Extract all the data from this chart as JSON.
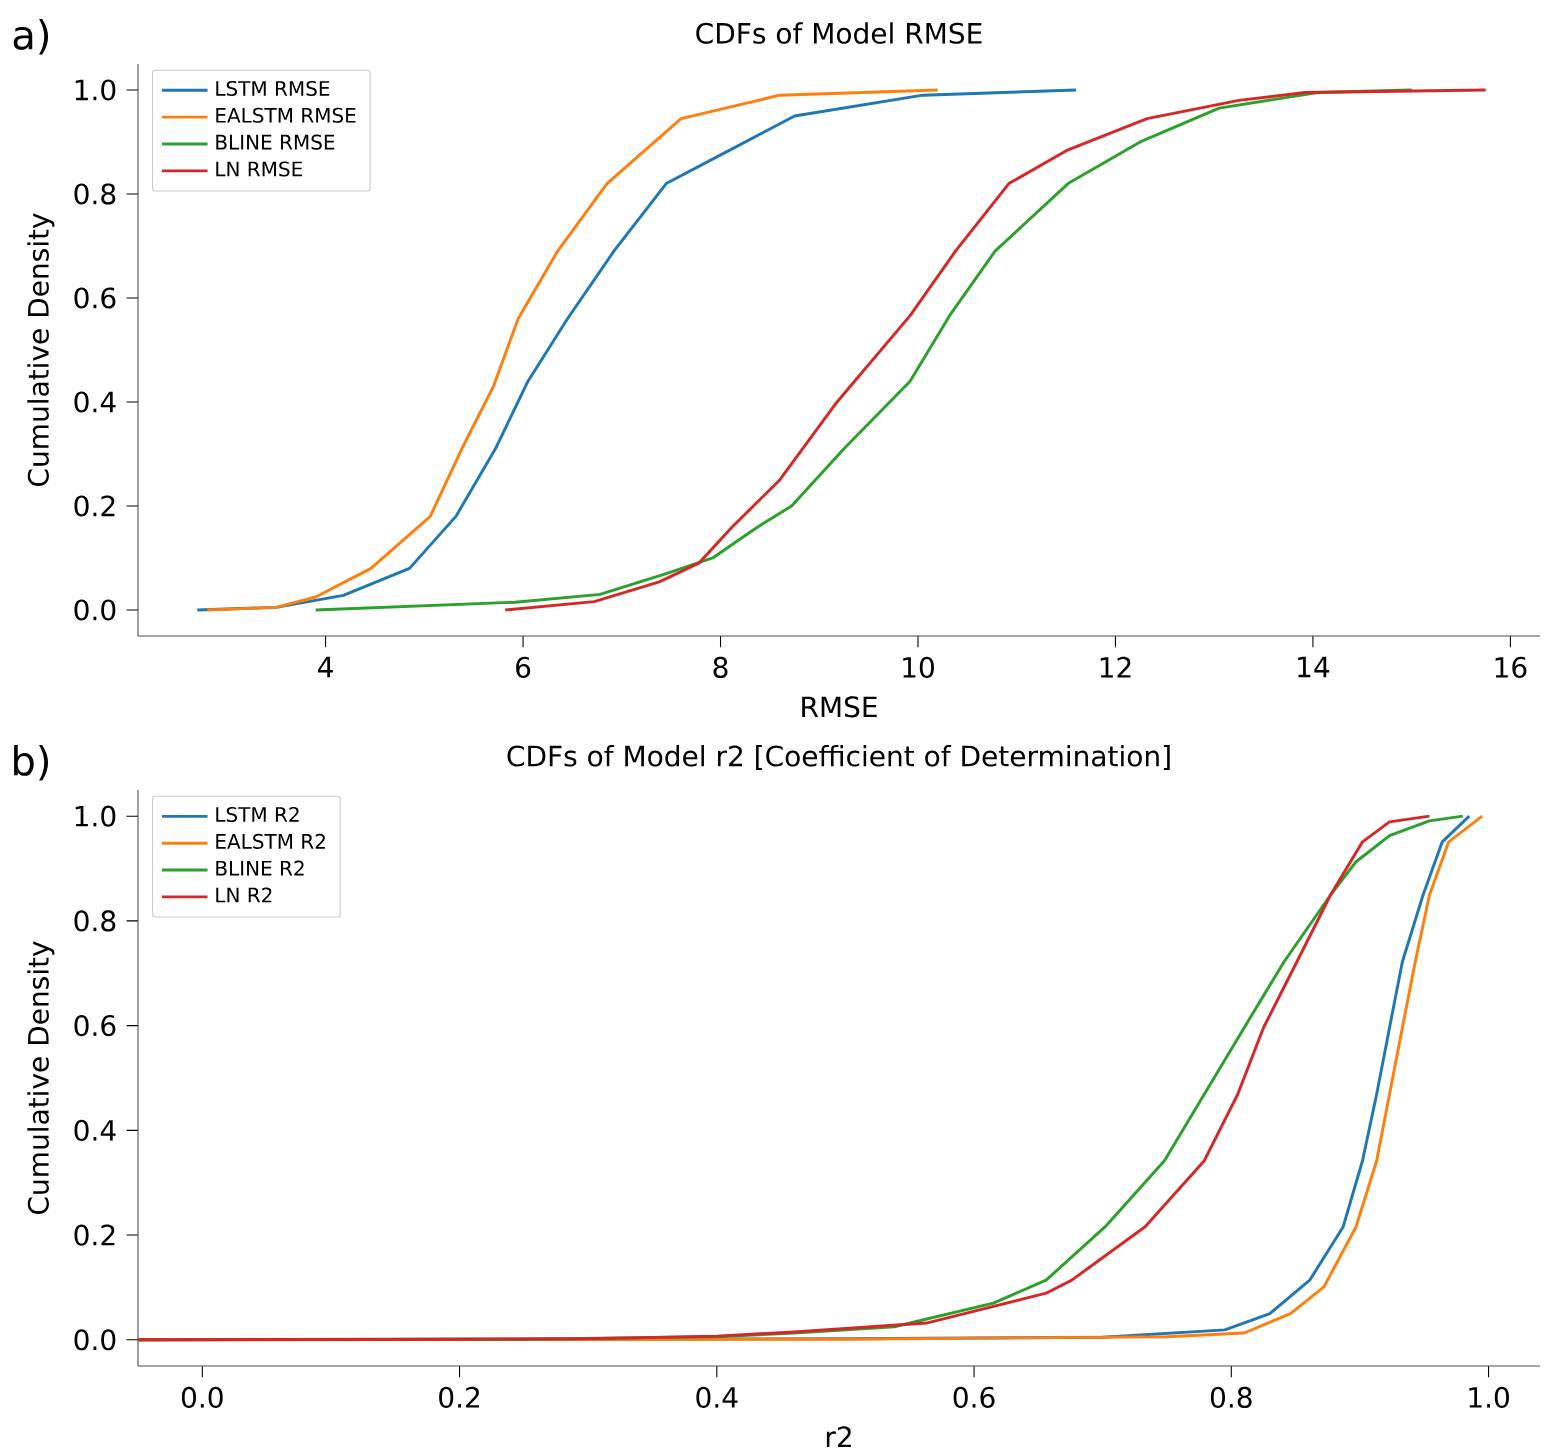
{
  "chart_data": [
    {
      "type": "line",
      "title": "CDFs of Model RMSE",
      "xlabel": "RMSE",
      "ylabel": "Cumulative Density",
      "annotations": [
        "a)"
      ],
      "xlim": [
        2.1,
        16.3
      ],
      "ylim": [
        -0.05,
        1.05
      ],
      "xticks": [
        4,
        6,
        8,
        10,
        12,
        14,
        16
      ],
      "yticks": [
        {
          "value": 0,
          "label": "0.0"
        },
        {
          "value": 0.2,
          "label": "0.2"
        },
        {
          "value": 0.4,
          "label": "0.4"
        },
        {
          "value": 0.6,
          "label": "0.6"
        },
        {
          "value": 0.8,
          "label": "0.8"
        },
        {
          "value": 1,
          "label": "1.0"
        }
      ],
      "grid": false,
      "legend": "top left",
      "marker": "none",
      "line_style": "solid",
      "series": [
        {
          "name": "LSTM RMSE",
          "color": "#1f77b4",
          "x": [
            2.7,
            3.5,
            4.18,
            4.85,
            5.32,
            5.72,
            6.05,
            6.45,
            6.92,
            7.45,
            8.05,
            8.75,
            10.05,
            11.6
          ],
          "values": [
            0,
            0.005,
            0.028,
            0.08,
            0.18,
            0.31,
            0.44,
            0.56,
            0.69,
            0.82,
            0.88,
            0.95,
            0.99,
            1.0
          ]
        },
        {
          "name": "EALSTM RMSE",
          "color": "#ff7f0e",
          "x": [
            2.8,
            3.5,
            3.9,
            4.46,
            5.06,
            5.38,
            5.7,
            5.95,
            6.35,
            6.85,
            7.6,
            8.6,
            10.2
          ],
          "values": [
            0,
            0.005,
            0.025,
            0.08,
            0.18,
            0.31,
            0.43,
            0.56,
            0.69,
            0.82,
            0.945,
            0.99,
            1.0
          ]
        },
        {
          "name": "BLINE RMSE",
          "color": "#2ca02c",
          "x": [
            3.9,
            5.92,
            6.78,
            7.45,
            7.92,
            8.38,
            8.72,
            9.25,
            9.92,
            10.32,
            10.78,
            11.52,
            12.25,
            13.05,
            14.05,
            15.0
          ],
          "values": [
            0,
            0.015,
            0.03,
            0.07,
            0.1,
            0.16,
            0.2,
            0.31,
            0.44,
            0.566,
            0.69,
            0.82,
            0.9,
            0.965,
            0.995,
            1.0
          ]
        },
        {
          "name": "LN RMSE",
          "color": "#d62728",
          "x": [
            5.82,
            6.72,
            7.38,
            7.78,
            8.12,
            8.6,
            9.18,
            9.92,
            10.38,
            10.92,
            11.52,
            12.32,
            13.25,
            13.92,
            15.75
          ],
          "values": [
            0,
            0.016,
            0.054,
            0.09,
            0.16,
            0.25,
            0.4,
            0.566,
            0.69,
            0.82,
            0.885,
            0.945,
            0.98,
            0.995,
            1.0
          ]
        }
      ]
    },
    {
      "type": "line",
      "title": "CDFs of Model r2 [Coefficient of Determination]",
      "xlabel": "r2",
      "ylabel": "Cumulative Density",
      "annotations": [
        "b)"
      ],
      "xlim": [
        -0.05,
        1.04
      ],
      "ylim": [
        -0.05,
        1.05
      ],
      "xticks": [
        {
          "value": 0,
          "label": "0.0"
        },
        {
          "value": 0.2,
          "label": "0.2"
        },
        {
          "value": 0.4,
          "label": "0.4"
        },
        {
          "value": 0.6,
          "label": "0.6"
        },
        {
          "value": 0.8,
          "label": "0.8"
        },
        {
          "value": 1,
          "label": "1.0"
        }
      ],
      "yticks": [
        {
          "value": 0,
          "label": "0.0"
        },
        {
          "value": 0.2,
          "label": "0.2"
        },
        {
          "value": 0.4,
          "label": "0.4"
        },
        {
          "value": 0.6,
          "label": "0.6"
        },
        {
          "value": 0.8,
          "label": "0.8"
        },
        {
          "value": 1,
          "label": "1.0"
        }
      ],
      "grid": false,
      "legend": "top left",
      "marker": "none",
      "line_style": "solid",
      "series": [
        {
          "name": "LSTM R2",
          "color": "#1f77b4",
          "x": [
            -0.05,
            0.5,
            0.7,
            0.795,
            0.83,
            0.861,
            0.887,
            0.902,
            0.913,
            0.923,
            0.933,
            0.949,
            0.964,
            0.985
          ],
          "values": [
            0,
            0.002,
            0.005,
            0.019,
            0.05,
            0.114,
            0.216,
            0.342,
            0.469,
            0.596,
            0.722,
            0.849,
            0.951,
            1.0
          ]
        },
        {
          "name": "EALSTM R2",
          "color": "#ff7f0e",
          "x": [
            -0.05,
            0.5,
            0.75,
            0.81,
            0.846,
            0.872,
            0.897,
            0.913,
            0.923,
            0.933,
            0.943,
            0.954,
            0.969,
            0.995
          ],
          "values": [
            0,
            0.001,
            0.006,
            0.013,
            0.05,
            0.101,
            0.216,
            0.342,
            0.469,
            0.596,
            0.722,
            0.849,
            0.951,
            1.0
          ]
        },
        {
          "name": "BLINE R2",
          "color": "#2ca02c",
          "x": [
            -0.05,
            0.25,
            0.4,
            0.46,
            0.538,
            0.615,
            0.656,
            0.702,
            0.748,
            0.779,
            0.81,
            0.841,
            0.877,
            0.897,
            0.923,
            0.954,
            0.98
          ],
          "values": [
            0,
            0.001,
            0.006,
            0.013,
            0.025,
            0.07,
            0.114,
            0.216,
            0.342,
            0.469,
            0.596,
            0.722,
            0.849,
            0.913,
            0.963,
            0.991,
            1.0
          ]
        },
        {
          "name": "LN R2",
          "color": "#d62728",
          "x": [
            -0.05,
            0.3,
            0.4,
            0.46,
            0.563,
            0.656,
            0.676,
            0.733,
            0.779,
            0.805,
            0.825,
            0.851,
            0.877,
            0.902,
            0.923,
            0.954
          ],
          "values": [
            0,
            0.002,
            0.007,
            0.015,
            0.032,
            0.089,
            0.114,
            0.216,
            0.342,
            0.469,
            0.596,
            0.722,
            0.849,
            0.951,
            0.989,
            1.0
          ]
        }
      ]
    }
  ]
}
